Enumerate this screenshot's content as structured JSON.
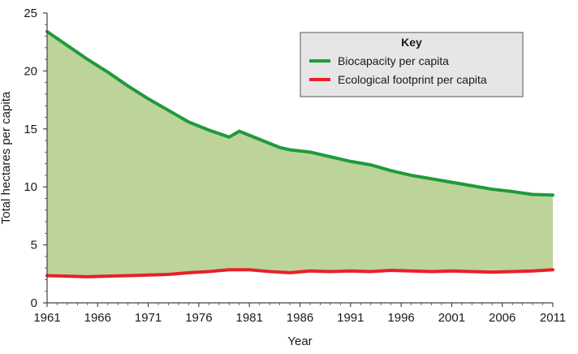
{
  "chart_data": {
    "type": "area",
    "title": "",
    "xlabel": "Year",
    "ylabel": "Total hectares per capita",
    "xlim": [
      1961,
      2011
    ],
    "ylim": [
      0,
      25
    ],
    "x_ticks": [
      1961,
      1966,
      1971,
      1976,
      1981,
      1986,
      1991,
      1996,
      2001,
      2006,
      2011
    ],
    "y_ticks": [
      0,
      5,
      10,
      15,
      20,
      25
    ],
    "grid": false,
    "legend": {
      "title": "Key",
      "position": "top-right",
      "entries": [
        "Biocapacity per capita",
        "Ecological footprint per capita"
      ]
    },
    "fill_between_series": {
      "color": "#bcd49a"
    },
    "series": [
      {
        "name": "Biocapacity per capita",
        "color": "#1f9a3c",
        "x": [
          1961,
          1963,
          1965,
          1967,
          1969,
          1971,
          1973,
          1975,
          1977,
          1979,
          1980,
          1982,
          1984,
          1985,
          1987,
          1989,
          1991,
          1993,
          1995,
          1997,
          1999,
          2001,
          2003,
          2005,
          2007,
          2009,
          2011
        ],
        "y": [
          23.4,
          22.2,
          21.0,
          19.9,
          18.7,
          17.6,
          16.6,
          15.6,
          14.9,
          14.3,
          14.8,
          14.1,
          13.4,
          13.2,
          13.0,
          12.6,
          12.2,
          11.9,
          11.4,
          11.0,
          10.7,
          10.4,
          10.1,
          9.8,
          9.6,
          9.35,
          9.3
        ]
      },
      {
        "name": "Ecological footprint per capita",
        "color": "#e8202a",
        "x": [
          1961,
          1963,
          1965,
          1967,
          1969,
          1971,
          1973,
          1975,
          1977,
          1979,
          1981,
          1983,
          1985,
          1987,
          1989,
          1991,
          1993,
          1995,
          1997,
          1999,
          2001,
          2003,
          2005,
          2007,
          2009,
          2011
        ],
        "y": [
          2.35,
          2.3,
          2.25,
          2.3,
          2.35,
          2.4,
          2.45,
          2.6,
          2.7,
          2.85,
          2.85,
          2.7,
          2.6,
          2.75,
          2.7,
          2.75,
          2.7,
          2.8,
          2.75,
          2.7,
          2.75,
          2.7,
          2.65,
          2.7,
          2.75,
          2.85
        ]
      }
    ]
  }
}
